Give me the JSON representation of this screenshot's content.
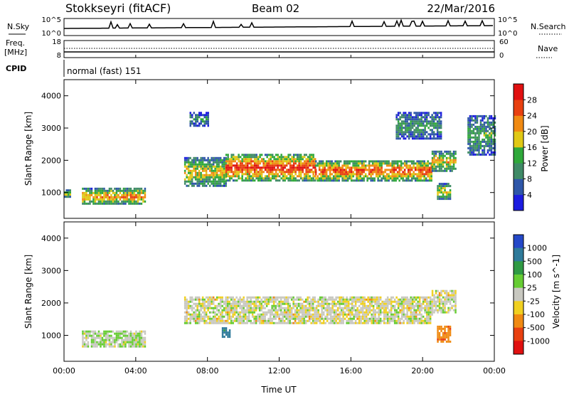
{
  "header": {
    "title": "Stokkseyri (fitACF)",
    "beam": "Beam 02",
    "date": "22/Mar/2016",
    "cpid_label": "CPID",
    "cpid_value": "normal (fast) 151"
  },
  "strips": {
    "nsky_label": "N.Sky",
    "nsky_top": "10^5",
    "nsky_bottom": "10^0",
    "nsearch_label": "N.Search",
    "nsearch_top": "10^5",
    "nsearch_bottom": "10^0",
    "freq_label_line1": "Freq.",
    "freq_label_line2": "[MHz]",
    "freq_top": "18",
    "freq_bottom": "8",
    "nave_label": "Nave",
    "nave_top": "60",
    "nave_bottom": "0"
  },
  "chart_data": [
    {
      "type": "heatmap",
      "panel": "power",
      "ylabel": "Slant Range [km]",
      "yticks": [
        "1000",
        "2000",
        "3000",
        "4000"
      ],
      "ylim": [
        200,
        4500
      ],
      "xlim": [
        0,
        24
      ],
      "colorbar_label": "Power [dB]",
      "colorbar_ticks": [
        "4",
        "8",
        "12",
        "16",
        "20",
        "24",
        "28"
      ],
      "colorbar_colors": [
        "#1c1ce0",
        "#2e56a8",
        "#3f8a66",
        "#2fa83a",
        "#e0c815",
        "#f08a12",
        "#e84010",
        "#e01010"
      ],
      "echo_regions": [
        {
          "t0": 0.0,
          "t1": 0.3,
          "r0": 900,
          "r1": 1100,
          "level": 0.55
        },
        {
          "t0": 1.0,
          "t1": 4.5,
          "r0": 650,
          "r1": 1150,
          "level": 0.6
        },
        {
          "t0": 6.7,
          "t1": 9.0,
          "r0": 1200,
          "r1": 2100,
          "level": 0.5
        },
        {
          "t0": 9.0,
          "t1": 14.0,
          "r0": 1400,
          "r1": 2200,
          "level": 0.75
        },
        {
          "t0": 14.0,
          "t1": 20.5,
          "r0": 1400,
          "r1": 2000,
          "level": 0.7
        },
        {
          "t0": 20.5,
          "t1": 21.8,
          "r0": 1700,
          "r1": 2300,
          "level": 0.55
        },
        {
          "t0": 20.8,
          "t1": 21.5,
          "r0": 800,
          "r1": 1300,
          "level": 0.5
        },
        {
          "t0": 22.5,
          "t1": 24.0,
          "r0": 2200,
          "r1": 3400,
          "level": 0.35
        },
        {
          "t0": 7.0,
          "t1": 8.0,
          "r0": 3100,
          "r1": 3500,
          "level": 0.3
        },
        {
          "t0": 18.5,
          "t1": 21.0,
          "r0": 2700,
          "r1": 3500,
          "level": 0.3
        }
      ]
    },
    {
      "type": "heatmap",
      "panel": "velocity",
      "ylabel": "Slant Range [km]",
      "yticks": [
        "1000",
        "2000",
        "3000",
        "4000"
      ],
      "ylim": [
        200,
        4500
      ],
      "xlim": [
        0,
        24
      ],
      "xticks": [
        "00:00",
        "04:00",
        "08:00",
        "12:00",
        "16:00",
        "20:00",
        "00:00"
      ],
      "xlabel": "Time UT",
      "colorbar_label": "Velocity [m s^-1]",
      "colorbar_ticks": [
        "1000",
        "500",
        "100",
        "25",
        "-25",
        "-100",
        "-500",
        "-1000"
      ],
      "colorbar_colors": [
        "#2448c8",
        "#2e7a9a",
        "#2f9a44",
        "#66cc33",
        "#c8c8c0",
        "#f0d020",
        "#f08a12",
        "#e84010",
        "#e01010"
      ],
      "echo_regions": [
        {
          "t0": 1.0,
          "t1": 4.5,
          "r0": 650,
          "r1": 1150,
          "velocity": 25
        },
        {
          "t0": 6.7,
          "t1": 20.5,
          "r0": 1400,
          "r1": 2200,
          "velocity": 0
        },
        {
          "t0": 20.5,
          "t1": 21.8,
          "r0": 1700,
          "r1": 2400,
          "velocity": 0
        },
        {
          "t0": 20.8,
          "t1": 21.5,
          "r0": 800,
          "r1": 1300,
          "velocity": -300
        },
        {
          "t0": 8.8,
          "t1": 9.2,
          "r0": 950,
          "r1": 1250,
          "velocity": 300
        }
      ]
    }
  ]
}
